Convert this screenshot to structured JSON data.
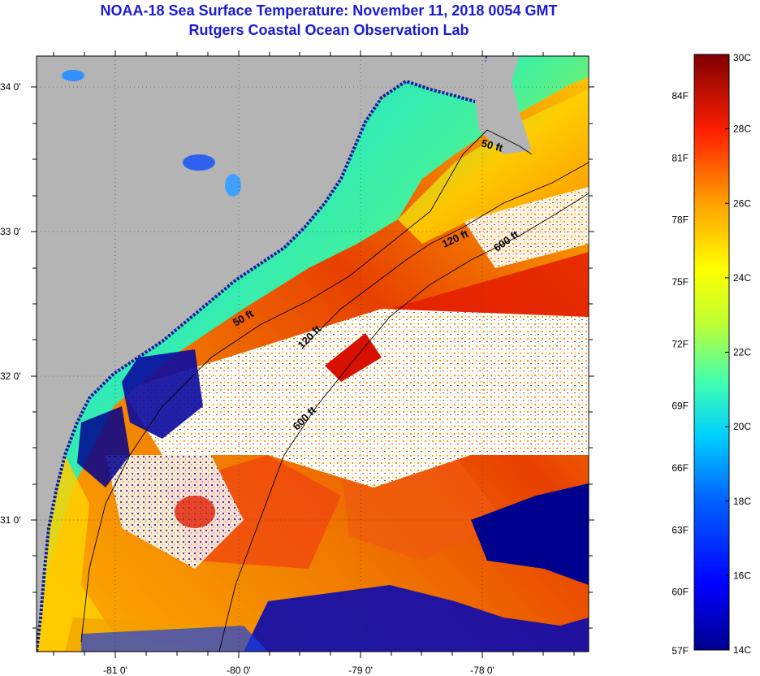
{
  "title": {
    "line1": "NOAA-18 Sea Surface Temperature:  November 11, 2018 0054 GMT",
    "line2": "Rutgers Coastal Ocean Observation Lab"
  },
  "map": {
    "lat_ticks": [
      "34 0'",
      "33 0'",
      "32 0'",
      "31 0'"
    ],
    "lon_ticks": [
      "-81 0'",
      "-80 0'",
      "-79 0'",
      "-78 0'"
    ],
    "isobath_labels": [
      {
        "text": "50 ft",
        "id": "ne"
      },
      {
        "text": "120 ft",
        "id": "ne"
      },
      {
        "text": "600 ft",
        "id": "ne"
      },
      {
        "text": "50 ft",
        "id": "mid"
      },
      {
        "text": "120 ft",
        "id": "mid"
      },
      {
        "text": "600 ft",
        "id": "sw"
      }
    ],
    "colors": {
      "land": "#b4b4b4",
      "cloud": "#ffffff",
      "cold": "#00008f",
      "warm": "#d41c00"
    }
  },
  "colorbar": {
    "celsius_labels": [
      "30C",
      "28C",
      "26C",
      "24C",
      "22C",
      "20C",
      "18C",
      "16C",
      "14C"
    ],
    "fahrenheit_labels": [
      "84F",
      "81F",
      "78F",
      "75F",
      "72F",
      "69F",
      "66F",
      "63F",
      "60F",
      "57F"
    ],
    "min_c": 14,
    "max_c": 30
  }
}
